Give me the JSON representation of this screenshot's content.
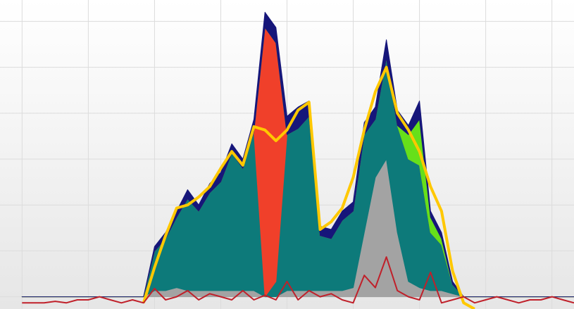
{
  "chart_data": {
    "type": "area",
    "x": [
      0,
      1,
      2,
      3,
      4,
      5,
      6,
      7,
      8,
      9,
      10,
      11,
      12,
      13,
      14,
      15,
      16,
      17,
      18,
      19,
      20,
      21,
      22,
      23,
      24,
      25,
      26,
      27,
      28,
      29,
      30,
      31,
      32,
      33,
      34,
      35,
      36,
      37,
      38,
      39,
      40,
      41,
      42,
      43,
      44,
      45,
      46,
      47,
      48,
      49,
      50
    ],
    "xlim": [
      -2,
      50
    ],
    "xticks": [
      0,
      6,
      12,
      18,
      24,
      30,
      36,
      42,
      48
    ],
    "ylim": [
      -4,
      97
    ],
    "yticks": [
      0,
      15,
      30,
      45,
      60,
      75,
      90
    ],
    "grid": true,
    "series": [
      {
        "color": "#a3a3a3",
        "values": [
          0,
          0,
          0,
          0,
          0,
          0,
          0,
          0,
          0,
          0,
          0,
          0,
          2,
          2,
          3,
          2,
          2,
          2,
          2,
          2,
          2,
          2,
          0,
          0,
          2,
          2,
          2,
          2,
          2,
          2,
          3,
          21,
          39,
          45,
          21,
          5,
          3,
          2,
          2,
          1,
          0,
          0,
          0,
          0,
          0,
          0,
          0,
          0,
          0,
          0,
          0
        ]
      },
      {
        "color": "#0d7a7a",
        "values": [
          0,
          0,
          0,
          0,
          0,
          0,
          0,
          0,
          0,
          0,
          0,
          0,
          12.9,
          17,
          23,
          30,
          26,
          32,
          35.6,
          45,
          40,
          52,
          0,
          5,
          51,
          53,
          57,
          18,
          17,
          23,
          25,
          32,
          19,
          33,
          35,
          40,
          40,
          19,
          15,
          3,
          0,
          0,
          0,
          0,
          0,
          0,
          0,
          0,
          0,
          0,
          0
        ]
      },
      {
        "color": "#f0402a",
        "values": [
          0,
          0,
          0,
          0,
          0,
          0,
          0,
          0,
          0,
          0,
          0,
          0,
          0,
          0,
          0,
          0,
          0,
          0,
          0,
          0,
          0,
          0,
          88,
          78,
          0,
          0,
          0,
          0,
          0,
          0,
          0,
          0,
          0,
          0,
          0,
          0,
          0,
          0,
          0,
          0,
          0,
          0,
          0,
          0,
          0,
          0,
          0,
          0,
          0,
          0,
          0
        ]
      },
      {
        "color": "#66e01a",
        "values": [
          0,
          0,
          0,
          0,
          0,
          0,
          0,
          0,
          0,
          0,
          0,
          0,
          0,
          0,
          0,
          0,
          0,
          0,
          0,
          0,
          0,
          0,
          0,
          0,
          0,
          0,
          0,
          0,
          0,
          0,
          0,
          0,
          0,
          0,
          0,
          8,
          15,
          5,
          2,
          0,
          0,
          0,
          0,
          0,
          0,
          0,
          0,
          0,
          0,
          0,
          0
        ]
      },
      {
        "color": "#16167a",
        "values": [
          0,
          0,
          0,
          0,
          0,
          0,
          0,
          0,
          0,
          0,
          0,
          0,
          1.5,
          2,
          2,
          3,
          2,
          3,
          3,
          3,
          3,
          4,
          5,
          5,
          6,
          7,
          5,
          3,
          3,
          3,
          3,
          4,
          4,
          6,
          5,
          3,
          6,
          2,
          2,
          1,
          0,
          0,
          0,
          0,
          0,
          0,
          0,
          0,
          0,
          0,
          0
        ]
      },
      {
        "type": "line",
        "color": "#ffc800",
        "values": [
          null,
          null,
          null,
          null,
          null,
          null,
          null,
          null,
          null,
          null,
          null,
          -2,
          9.6,
          20,
          29,
          30,
          32.6,
          36,
          42,
          47.5,
          43,
          55.6,
          54.5,
          51,
          54.5,
          61,
          63.6,
          22,
          24.5,
          29,
          39,
          54.5,
          67,
          75,
          60,
          54.5,
          47.5,
          36,
          28,
          8.4,
          -2,
          -4,
          null,
          null,
          null,
          null,
          null,
          null,
          null,
          null,
          null
        ]
      },
      {
        "type": "line",
        "color": "#c0202a",
        "values": [
          -2,
          -2,
          -2,
          -1.5,
          -2,
          -1,
          -1,
          0,
          -1,
          -2,
          -1,
          -2,
          2.7,
          -1,
          0,
          2,
          -1,
          1,
          0,
          -1,
          2,
          -1,
          0.5,
          -1,
          5,
          -1,
          2,
          0,
          1,
          -1,
          -2,
          7,
          3,
          13,
          2,
          0,
          -1,
          8,
          -2,
          -1,
          0,
          -2,
          -1,
          0,
          -1,
          -2,
          -1,
          -1,
          0,
          -1,
          -2
        ]
      }
    ]
  }
}
